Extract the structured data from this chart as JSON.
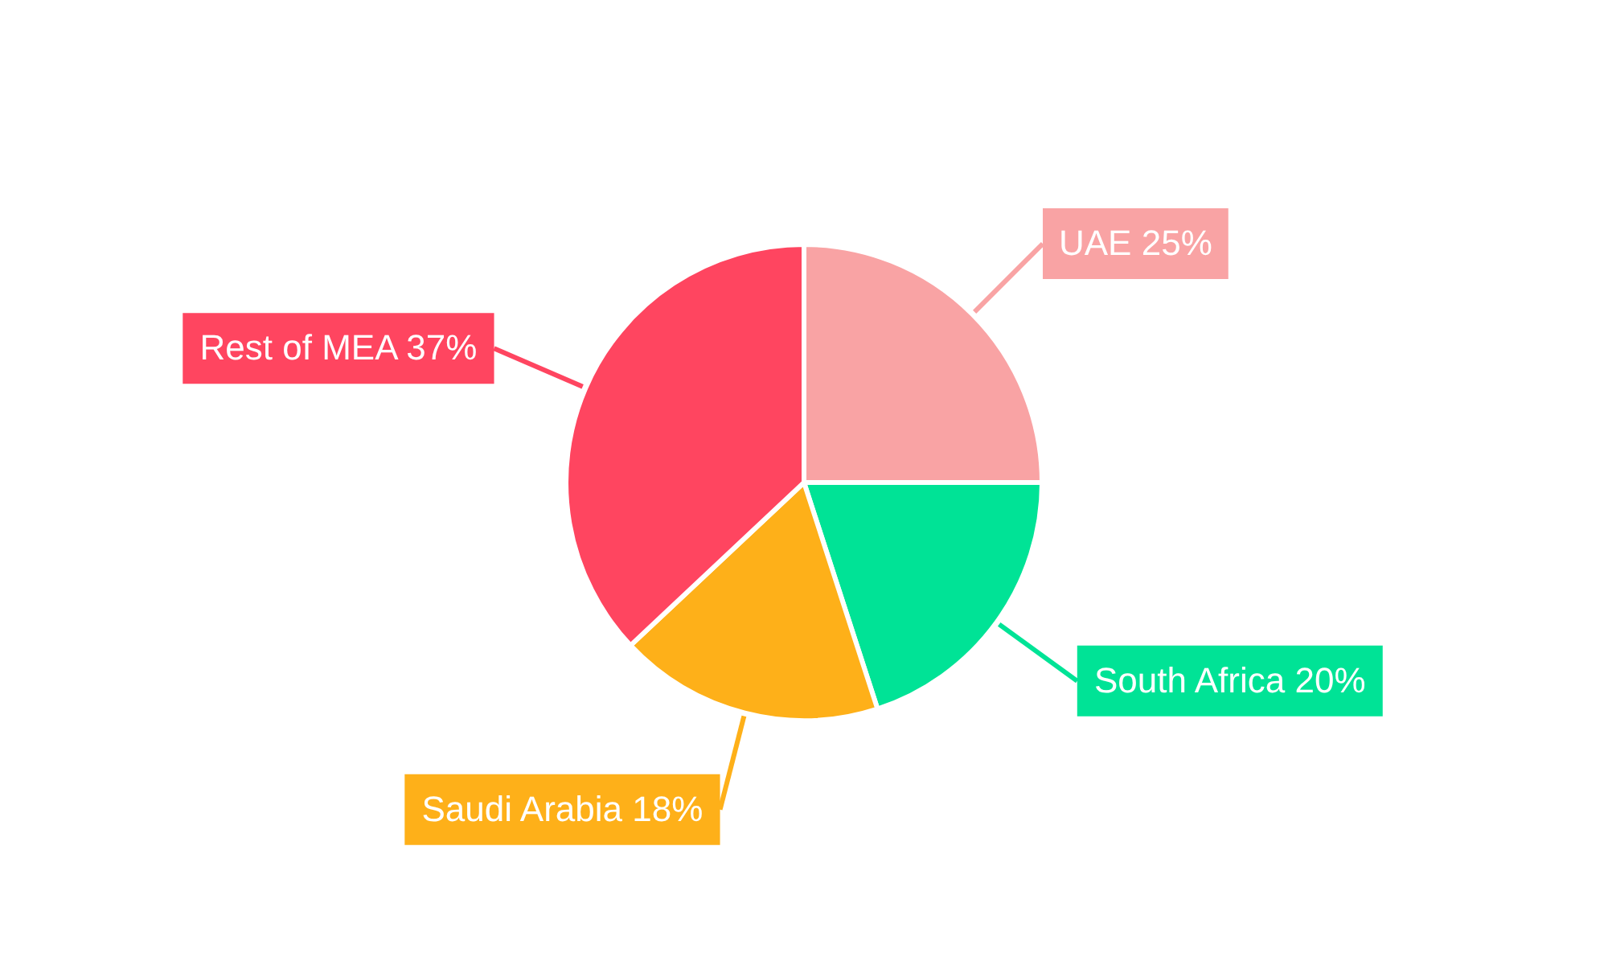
{
  "chart_data": {
    "type": "pie",
    "categories": [
      "UAE",
      "South Africa",
      "Saudi Arabia",
      "Rest of MEA"
    ],
    "values": [
      25,
      20,
      18,
      37
    ],
    "colors": [
      "#f9a3a4",
      "#00e396",
      "#feb019",
      "#ff4560"
    ],
    "value_labels": [
      "25%",
      "20%",
      "18%",
      "37%"
    ]
  }
}
